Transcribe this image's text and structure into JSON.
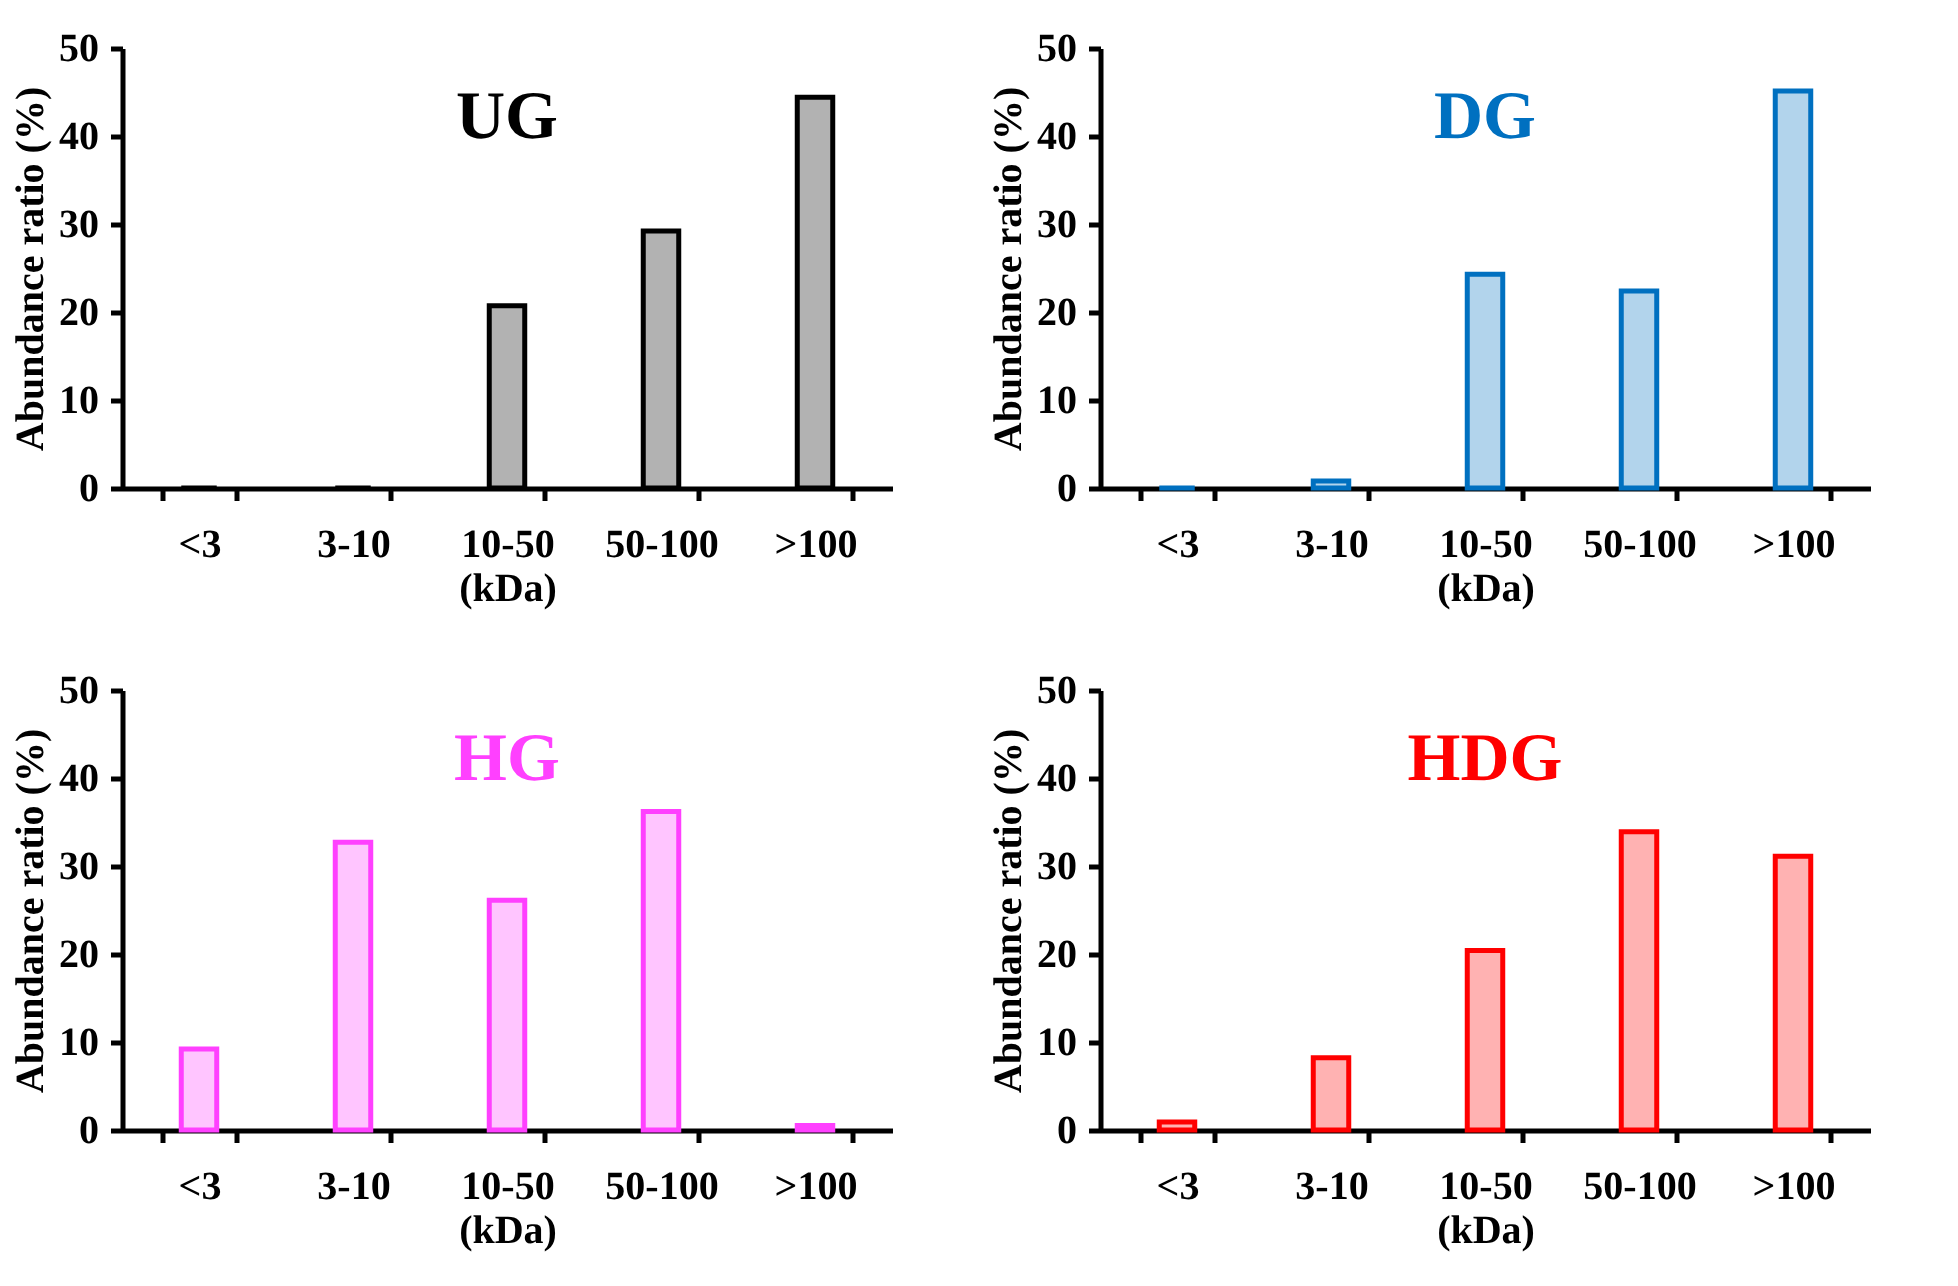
{
  "chart_data": [
    {
      "type": "bar",
      "title": "UG",
      "xlabel": "(kDa)",
      "ylabel": "Abundance ratio (%)",
      "categories": [
        "<3",
        "3-10",
        "10-50",
        "50-100",
        ">100"
      ],
      "series": [
        {
          "color": "#000000",
          "values": [
            0,
            0,
            20.7,
            29.2,
            44.4
          ]
        }
      ],
      "ylim": [
        0,
        50
      ],
      "yticks": [
        0,
        10,
        20,
        30,
        40,
        50
      ]
    },
    {
      "type": "bar",
      "title": "DG",
      "xlabel": "(kDa)",
      "ylabel": "Abundance ratio (%)",
      "categories": [
        "<3",
        "3-10",
        "10-50",
        "50-100",
        ">100"
      ],
      "series": [
        {
          "color": "#0070c0",
          "values": [
            0,
            0.8,
            24.3,
            22.4,
            45.1
          ]
        }
      ],
      "ylim": [
        0,
        50
      ],
      "yticks": [
        0,
        10,
        20,
        30,
        40,
        50
      ]
    },
    {
      "type": "bar",
      "title": "HG",
      "xlabel": "(kDa)",
      "ylabel": "Abundance ratio (%)",
      "categories": [
        "<3",
        "3-10",
        "10-50",
        "50-100",
        ">100"
      ],
      "series": [
        {
          "color": "#ff40ff",
          "values": [
            9.2,
            32.7,
            26.1,
            36.2,
            0.5
          ]
        }
      ],
      "ylim": [
        0,
        50
      ],
      "yticks": [
        0,
        10,
        20,
        30,
        40,
        50
      ]
    },
    {
      "type": "bar",
      "title": "HDG",
      "xlabel": "(kDa)",
      "ylabel": "Abundance ratio (%)",
      "categories": [
        "<3",
        "3-10",
        "10-50",
        "50-100",
        ">100"
      ],
      "series": [
        {
          "color": "#ff0000",
          "values": [
            0.9,
            8.2,
            20.4,
            33.9,
            31.1
          ]
        }
      ],
      "ylim": [
        0,
        50
      ],
      "yticks": [
        0,
        10,
        20,
        30,
        40,
        50
      ]
    }
  ]
}
